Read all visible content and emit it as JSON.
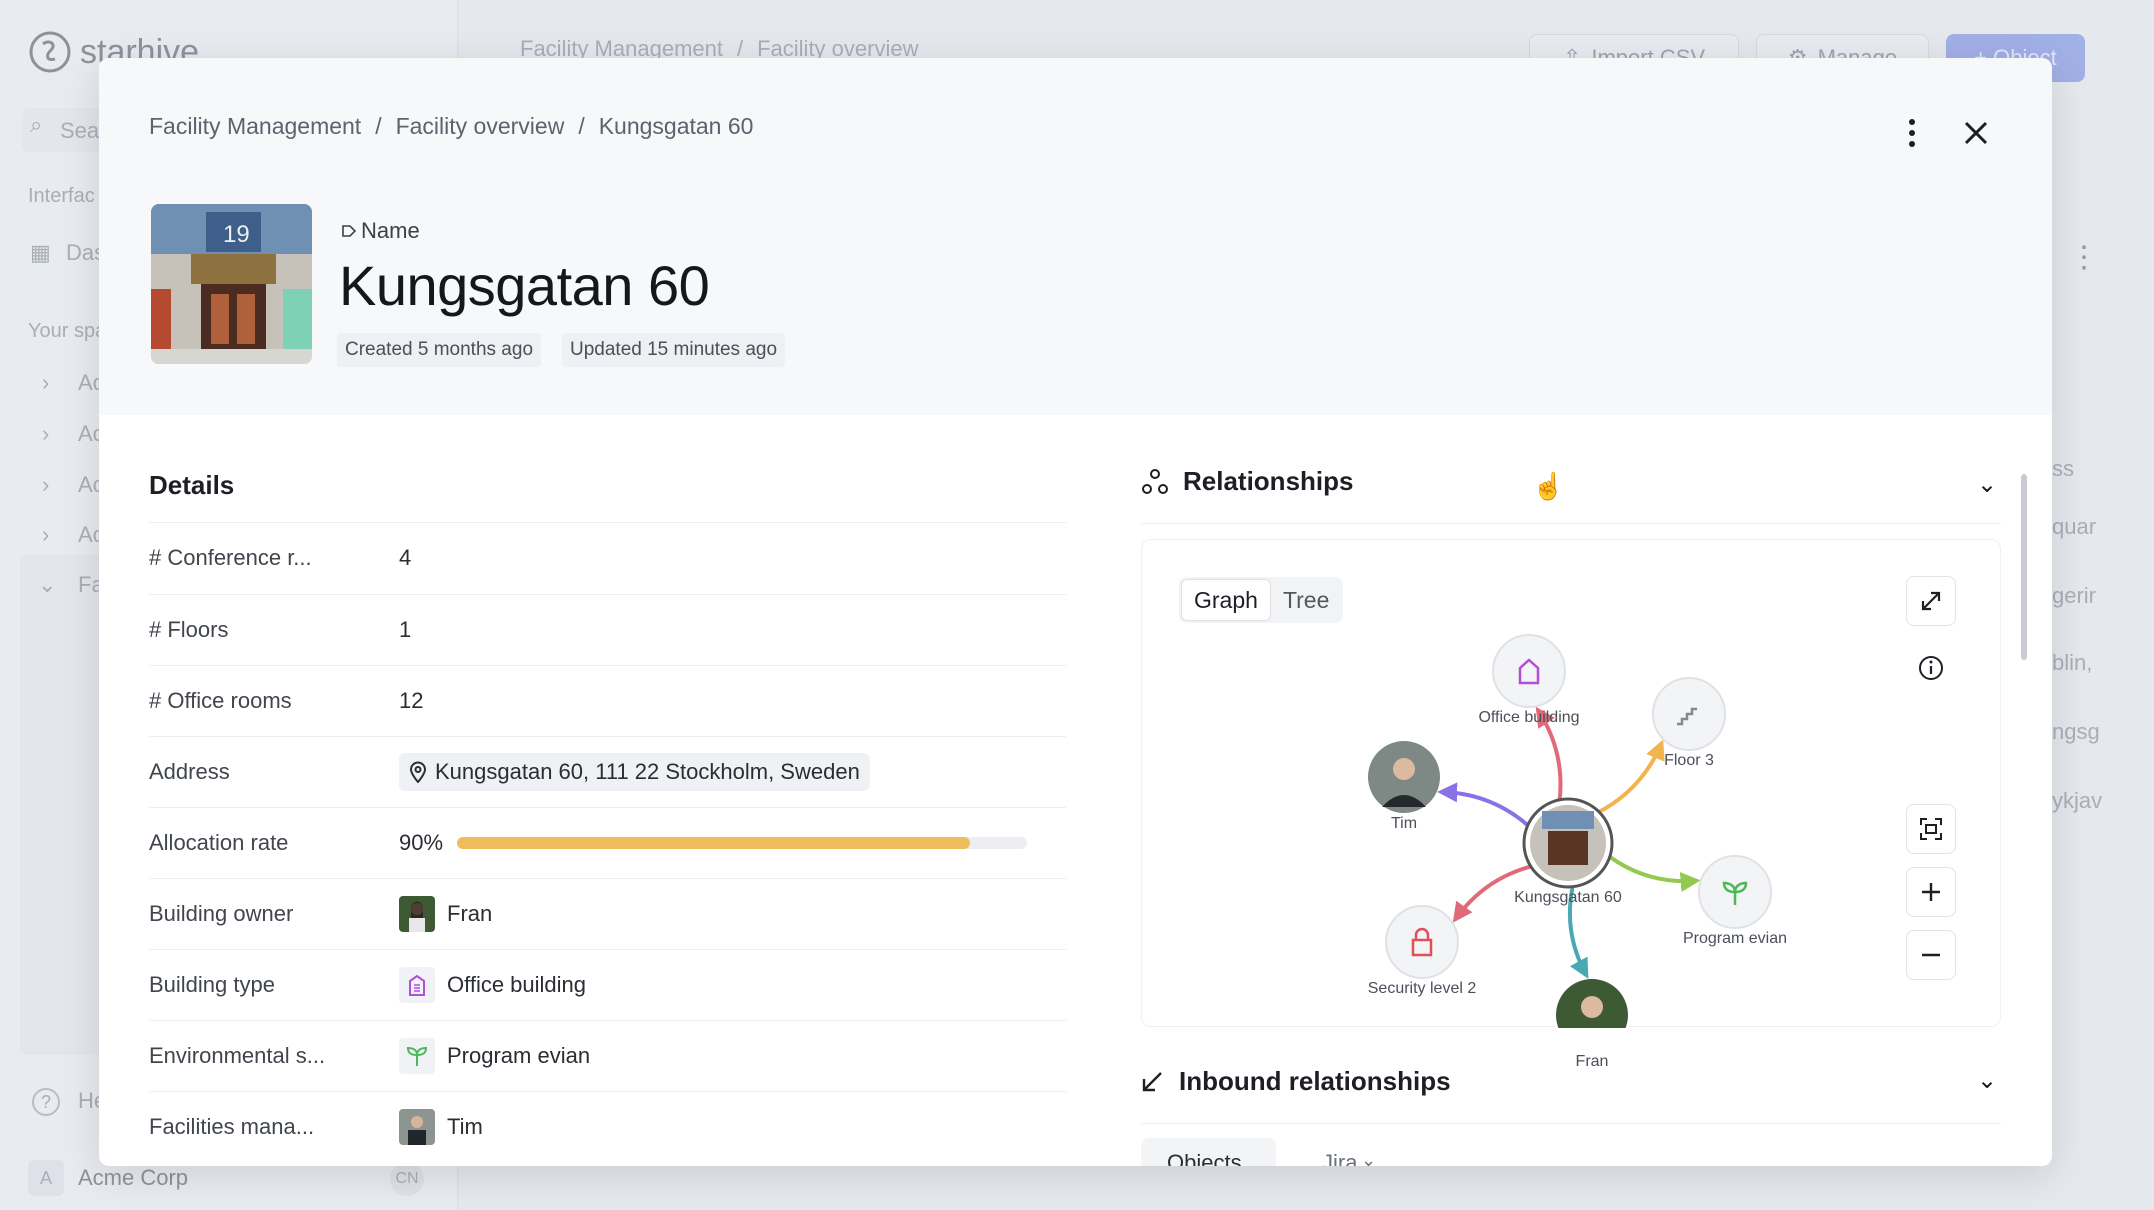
{
  "background": {
    "logo": "starhive",
    "search_fragment": "Sea",
    "interfaces_fragment": "Interfac",
    "dashboard_fragment": "Das",
    "your_spaces_fragment": "Your spa",
    "tree_items": [
      "Ac",
      "Ac",
      "Ac",
      "Ac",
      "Fa"
    ],
    "help_fragment": "He",
    "workspace": "Acme Corp",
    "workspace_initial": "A",
    "user_initials": "CN",
    "breadcrumb": [
      "Facility Management",
      "Facility overview"
    ],
    "buttons": {
      "import": "Import CSV",
      "manage": "Manage",
      "add": "+ Object"
    },
    "column_fragments": [
      "ss",
      "quar",
      "gerir",
      "blin,",
      "ngsg",
      "ykjav"
    ]
  },
  "modal": {
    "breadcrumb": [
      "Facility Management",
      "Facility overview",
      "Kungsgatan 60"
    ],
    "name_label": "Name",
    "title": "Kungsgatan 60",
    "created": "Created 5 months ago",
    "updated": "Updated 15 minutes ago",
    "details": {
      "title": "Details",
      "rows": [
        {
          "label": "# Conference r...",
          "value": "4"
        },
        {
          "label": "# Floors",
          "value": "1"
        },
        {
          "label": "# Office rooms",
          "value": "12"
        },
        {
          "label": "Address",
          "value": "Kungsgatan 60, 111 22 Stockholm, Sweden"
        },
        {
          "label": "Allocation rate",
          "value": "90%",
          "progress": 0.9,
          "color": "#f0bd5e"
        },
        {
          "label": "Building owner",
          "value": "Fran"
        },
        {
          "label": "Building type",
          "value": "Office building"
        },
        {
          "label": "Environmental s...",
          "value": "Program evian"
        },
        {
          "label": "Facilities mana...",
          "value": "Tim"
        }
      ]
    },
    "relationships": {
      "title": "Relationships",
      "view_tabs": [
        "Graph",
        "Tree"
      ],
      "active_view": "Graph",
      "center": "Kungsgatan 60",
      "nodes": [
        {
          "id": "office",
          "label": "Office building",
          "icon": "building-icon",
          "edge_color": "#e06a7a"
        },
        {
          "id": "floor",
          "label": "Floor 3",
          "icon": "stairs-icon",
          "edge_color": "#f2b44e"
        },
        {
          "id": "tim",
          "label": "Tim",
          "icon": "avatar",
          "edge_color": "#8a72e6"
        },
        {
          "id": "evian",
          "label": "Program evian",
          "icon": "sprout-icon",
          "edge_color": "#93c94e"
        },
        {
          "id": "security",
          "label": "Security level 2",
          "icon": "lock-icon",
          "edge_color": "#e06a7a"
        },
        {
          "id": "fran",
          "label": "Fran",
          "icon": "avatar",
          "edge_color": "#4aa8b4"
        }
      ]
    },
    "inbound": {
      "title": "Inbound relationships",
      "tabs": [
        "Objects",
        "Jira"
      ]
    }
  }
}
